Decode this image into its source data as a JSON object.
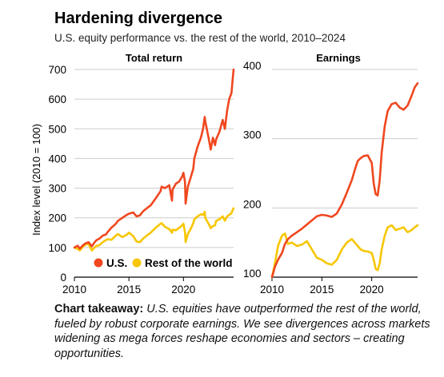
{
  "header": {
    "title": "Hardening divergence",
    "subtitle": "U.S. equity performance vs. the rest of the world, 2010–2024"
  },
  "colors": {
    "us": "#f0471f",
    "row": "#f7c600",
    "axis": "#000000",
    "grid": "#cccccc"
  },
  "chart_data": [
    {
      "type": "line",
      "title": "Total return",
      "ylabel": "Index level (2010 = 100)",
      "xlabel": "",
      "xlim": [
        2010,
        2024.6
      ],
      "ylim": [
        0,
        700
      ],
      "xticks": [
        "2010",
        "2015",
        "2020"
      ],
      "yticks": [
        "0",
        "100",
        "200",
        "300",
        "400",
        "500",
        "600",
        "700"
      ],
      "grid": "horizontal",
      "legend_position": "bottom-right",
      "series": [
        {
          "name": "U.S.",
          "color_key": "us",
          "x": [
            2010,
            2010.3,
            2010.5,
            2010.8,
            2011,
            2011.3,
            2011.6,
            2011.8,
            2012,
            2012.3,
            2012.6,
            2012.9,
            2013,
            2013.4,
            2013.8,
            2014,
            2014.4,
            2014.8,
            2015,
            2015.4,
            2015.7,
            2016,
            2016.3,
            2016.7,
            2017,
            2017.5,
            2017.9,
            2018,
            2018.3,
            2018.7,
            2018.95,
            2019,
            2019.3,
            2019.6,
            2019.9,
            2020,
            2020.15,
            2020.2,
            2020.4,
            2020.7,
            2020.9,
            2021,
            2021.3,
            2021.6,
            2021.8,
            2021.95,
            2022,
            2022.3,
            2022.5,
            2022.7,
            2022.9,
            2023,
            2023.3,
            2023.6,
            2023.8,
            2024,
            2024.2,
            2024.4,
            2024.5,
            2024.6
          ],
          "values": [
            100,
            106,
            96,
            108,
            113,
            118,
            104,
            115,
            124,
            130,
            140,
            144,
            150,
            167,
            180,
            190,
            200,
            210,
            214,
            218,
            205,
            208,
            222,
            234,
            242,
            268,
            290,
            305,
            300,
            310,
            258,
            295,
            315,
            322,
            340,
            352,
            320,
            248,
            305,
            340,
            365,
            400,
            440,
            470,
            500,
            540,
            525,
            470,
            430,
            470,
            445,
            465,
            490,
            530,
            500,
            560,
            600,
            620,
            660,
            700
          ]
        },
        {
          "name": "Rest of the world",
          "color_key": "row",
          "x": [
            2010,
            2010.3,
            2010.5,
            2010.8,
            2011,
            2011.3,
            2011.6,
            2011.8,
            2012,
            2012.3,
            2012.6,
            2012.9,
            2013,
            2013.4,
            2013.8,
            2014,
            2014.4,
            2014.8,
            2015,
            2015.4,
            2015.7,
            2016,
            2016.3,
            2016.7,
            2017,
            2017.5,
            2017.9,
            2018,
            2018.3,
            2018.7,
            2018.95,
            2019,
            2019.3,
            2019.6,
            2019.9,
            2020,
            2020.15,
            2020.2,
            2020.4,
            2020.7,
            2020.9,
            2021,
            2021.3,
            2021.6,
            2021.8,
            2021.95,
            2022,
            2022.3,
            2022.5,
            2022.7,
            2022.9,
            2023,
            2023.3,
            2023.6,
            2023.8,
            2024,
            2024.2,
            2024.4,
            2024.5,
            2024.6
          ],
          "values": [
            100,
            95,
            90,
            103,
            110,
            112,
            90,
            98,
            105,
            108,
            118,
            125,
            128,
            126,
            140,
            145,
            135,
            143,
            150,
            138,
            120,
            118,
            130,
            142,
            150,
            168,
            180,
            182,
            170,
            162,
            150,
            160,
            158,
            166,
            175,
            180,
            150,
            118,
            145,
            165,
            182,
            195,
            205,
            212,
            210,
            220,
            200,
            180,
            165,
            172,
            175,
            190,
            195,
            205,
            190,
            205,
            210,
            215,
            225,
            232
          ]
        }
      ]
    },
    {
      "type": "line",
      "title": "Earnings",
      "xlabel": "",
      "ylabel": "",
      "xlim": [
        2010,
        2024.6
      ],
      "ylim": [
        100,
        400
      ],
      "xticks": [
        "2010",
        "2015",
        "2020"
      ],
      "yticks": [
        "100",
        "200",
        "300",
        "400"
      ],
      "grid": "horizontal",
      "legend_position": "none",
      "series": [
        {
          "name": "U.S.",
          "color_key": "us",
          "x": [
            2010,
            2010.3,
            2010.6,
            2011,
            2011.3,
            2011.6,
            2012,
            2012.5,
            2013,
            2013.5,
            2014,
            2014.5,
            2015,
            2015.5,
            2016,
            2016.5,
            2017,
            2017.5,
            2018,
            2018.3,
            2018.6,
            2018.9,
            2019.2,
            2019.6,
            2020,
            2020.2,
            2020.4,
            2020.6,
            2020.8,
            2021,
            2021.3,
            2021.6,
            2022,
            2022.4,
            2022.8,
            2023.2,
            2023.6,
            2024,
            2024.3,
            2024.6
          ],
          "values": [
            100,
            115,
            125,
            135,
            148,
            155,
            160,
            165,
            170,
            176,
            182,
            188,
            190,
            189,
            187,
            192,
            205,
            222,
            240,
            255,
            268,
            272,
            275,
            276,
            265,
            235,
            220,
            218,
            240,
            280,
            318,
            340,
            350,
            352,
            345,
            342,
            348,
            362,
            374,
            380
          ]
        },
        {
          "name": "Rest of the world",
          "color_key": "row",
          "x": [
            2010,
            2010.3,
            2010.6,
            2011,
            2011.3,
            2011.6,
            2012,
            2012.5,
            2013,
            2013.5,
            2014,
            2014.5,
            2015,
            2015.5,
            2016,
            2016.5,
            2017,
            2017.5,
            2018,
            2018.3,
            2018.6,
            2018.9,
            2019.2,
            2019.6,
            2020,
            2020.2,
            2020.4,
            2020.6,
            2020.8,
            2021,
            2021.3,
            2021.6,
            2022,
            2022.4,
            2022.8,
            2023.2,
            2023.6,
            2024,
            2024.3,
            2024.6
          ],
          "values": [
            100,
            120,
            145,
            160,
            163,
            148,
            150,
            145,
            147,
            152,
            140,
            128,
            125,
            120,
            118,
            125,
            140,
            150,
            155,
            150,
            145,
            140,
            138,
            137,
            135,
            125,
            112,
            110,
            120,
            140,
            160,
            172,
            175,
            168,
            170,
            172,
            165,
            168,
            172,
            175
          ]
        }
      ]
    }
  ],
  "takeaway": {
    "label": "Chart takeaway:",
    "text": "U.S. equities have outperformed the rest of the world, fueled by robust corporate earnings. We see divergences across markets widening as mega forces reshape economies and sectors – creating opportunities."
  }
}
